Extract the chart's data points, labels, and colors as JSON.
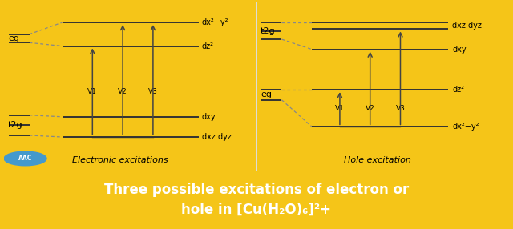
{
  "bg_color": "#F5C518",
  "panel_color": "#FFFFFF",
  "title_text": "Three possible excitations of electron or\nhole in [Cu(H₂O)₆]²+",
  "title_color": "#FFFFFF",
  "title_fontsize": 12,
  "left_title": "Electronic excitations",
  "right_title": "Hole excitation",
  "subtitle_fontsize": 8,
  "label_fontsize": 8,
  "small_fontsize": 7,
  "arrow_color": "#444444",
  "line_color": "#333333",
  "dashed_color": "#888888",
  "aac_color": "#4499CC"
}
